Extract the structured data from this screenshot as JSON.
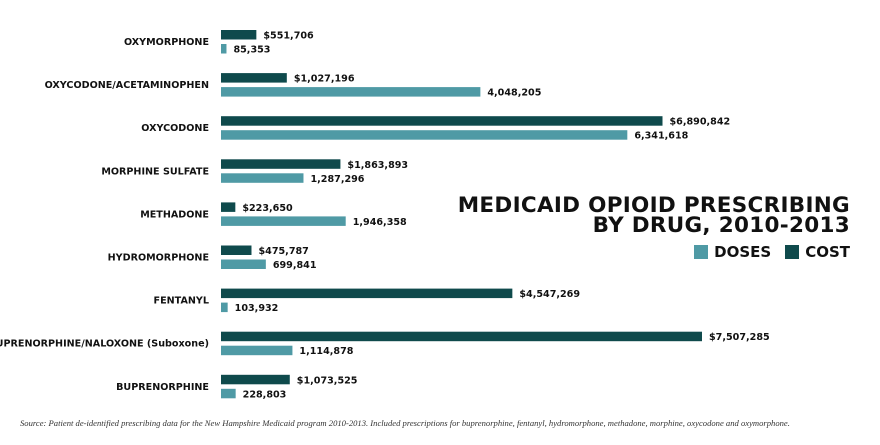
{
  "chart_data": {
    "type": "bar",
    "orientation": "horizontal",
    "title_lines": [
      "MEDICAID OPIOID PRESCRIBING",
      "BY DRUG, 2010-2013"
    ],
    "categories": [
      "OXYMORPHONE",
      "OXYCODONE/ACETAMINOPHEN",
      "OXYCODONE",
      "MORPHINE SULFATE",
      "METHADONE",
      "HYDROMORPHONE",
      "FENTANYL",
      "BUPRENORPHINE/NALOXONE (Suboxone)",
      "BUPRENORPHINE"
    ],
    "series": [
      {
        "name": "COST",
        "color": "#0f4a4c",
        "values": [
          551706,
          1027196,
          6890842,
          1863893,
          223650,
          475787,
          4547269,
          7507285,
          1073525
        ],
        "labels": [
          "$551,706",
          "$1,027,196",
          "$6,890,842",
          "$1,863,893",
          "$223,650",
          "$475,787",
          "$4,547,269",
          "$7,507,285",
          "$1,073,525"
        ]
      },
      {
        "name": "DOSES",
        "color": "#4f9aa5",
        "values": [
          85353,
          4048205,
          6341618,
          1287296,
          1946358,
          699841,
          103932,
          1114878,
          228803
        ],
        "labels": [
          "85,353",
          "4,048,205",
          "6,341,618",
          "1,287,296",
          "1,946,358",
          "699,841",
          "103,932",
          "1,114,878",
          "228,803"
        ]
      }
    ],
    "legend": {
      "placement": "right",
      "order": [
        "DOSES",
        "COST"
      ]
    },
    "grid": false
  },
  "source_note": "Source: Patient de-identified prescribing data for the New Hampshire Medicaid program 2010-2013. Included prescriptions for buprenorphine, fentanyl, hydromorphone, methadone, morphine, oxycodone and oxymorphone."
}
